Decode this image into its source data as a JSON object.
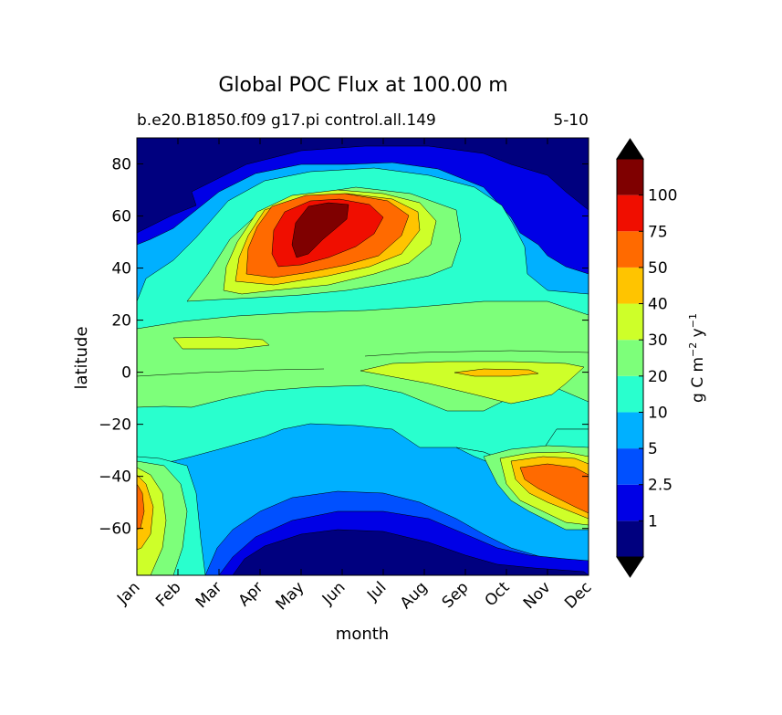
{
  "chart_data": {
    "type": "heatmap",
    "plot_style": "filled-contour",
    "title": "Global POC Flux at 100.00 m",
    "subtitle_left": "b.e20.B1850.f09 g17.pi control.all.149",
    "subtitle_right": "5-10",
    "xlabel": "month",
    "ylabel": "latitude",
    "x_ticks": [
      "Jan",
      "Feb",
      "Mar",
      "Apr",
      "May",
      "Jun",
      "Jul",
      "Aug",
      "Sep",
      "Oct",
      "Nov",
      "Dec"
    ],
    "y_ticks": [
      80,
      60,
      40,
      20,
      0,
      -20,
      -40,
      -60
    ],
    "y_tick_labels": [
      "80",
      "60",
      "40",
      "20",
      "0",
      "−20",
      "−40",
      "−60"
    ],
    "ylim": [
      -78,
      90
    ],
    "colorbar": {
      "label_main": "g C m",
      "label_exp1": "−2",
      "label_mid": " y",
      "label_exp2": "−1",
      "extend": "both",
      "tick_labels": [
        "1",
        "2.5",
        "5",
        "10",
        "20",
        "30",
        "40",
        "50",
        "75",
        "100"
      ],
      "colors": [
        "#00007f",
        "#0000e6",
        "#0050ff",
        "#00b0ff",
        "#29ffce",
        "#7dff7a",
        "#ceff29",
        "#ffc400",
        "#ff6a00",
        "#f00e00",
        "#7f0000"
      ],
      "under_color": "#000000",
      "over_color": "#000000"
    }
  }
}
